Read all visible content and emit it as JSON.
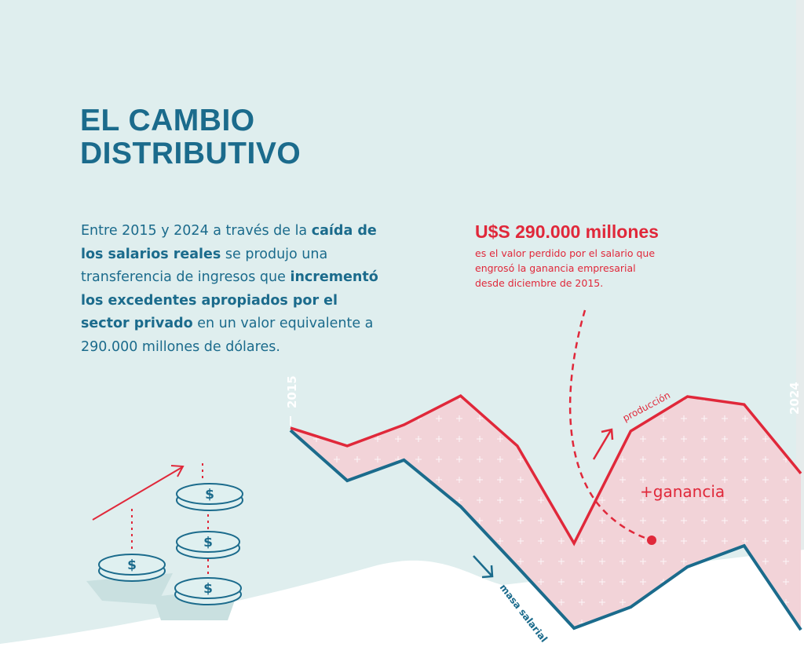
{
  "title": {
    "line1": "EL CAMBIO",
    "line2": "DISTRIBUTIVO"
  },
  "intro": {
    "p1": "Entre 2015 y 2024 a través de la ",
    "b1": "caída de los salarios reales",
    "p2": " se produjo una transferencia de ingresos que ",
    "b2": "incrementó los excedentes apropiados por el sector privado",
    "p3": " en un valor equivalente a 290.000 millones de dólares."
  },
  "callout": {
    "headline": "U$S 290.000 millones",
    "line1": "es el valor perdido por el salario que",
    "line2": "engrosó la ganancia empresarial",
    "line3": "desde diciembre de 2015."
  },
  "colors": {
    "red": "#e0283a",
    "blue": "#1b6b8c",
    "fill": "#f2d3d8",
    "bg": "#dfeeee"
  },
  "chart_data": {
    "type": "area",
    "x": [
      2015,
      2016,
      2017,
      2018,
      2019,
      2020,
      2021,
      2022,
      2023,
      2024
    ],
    "x_tick_labels": [
      "2015",
      "2024"
    ],
    "series": [
      {
        "name": "producción",
        "values": [
          100,
          92.5,
          101.3,
          113.4,
          92.5,
          51.8,
          98.7,
          113.1,
          109.8,
          81
        ]
      },
      {
        "name": "masa salarial",
        "values": [
          99,
          78,
          86.6,
          67.2,
          42,
          16.4,
          25.2,
          42,
          50.8,
          15.7
        ]
      }
    ],
    "area_label": "+ganancia",
    "ylim": [
      0,
      120
    ]
  }
}
